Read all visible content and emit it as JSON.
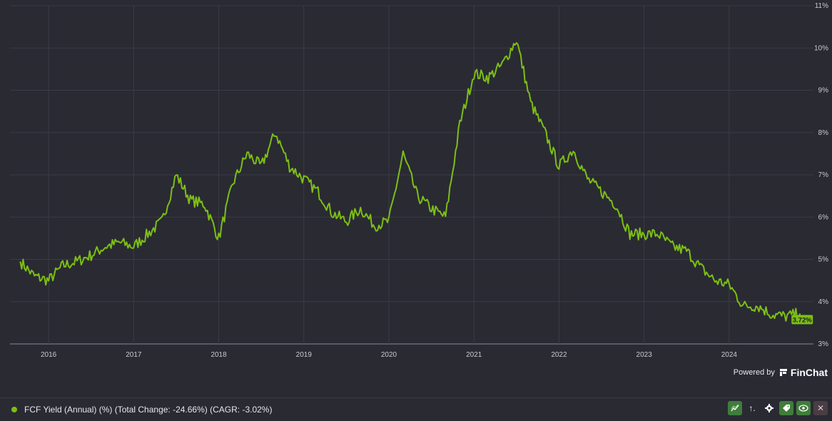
{
  "chart_data": {
    "type": "line",
    "x_ticks": [
      "2016",
      "2017",
      "2018",
      "2019",
      "2020",
      "2021",
      "2022",
      "2023",
      "2024"
    ],
    "y_ticks": [
      "11%",
      "10%",
      "9%",
      "8%",
      "7%",
      "6%",
      "5%",
      "4%",
      "3%"
    ],
    "ylim": [
      3,
      11
    ],
    "xlim": [
      "2015-09",
      "2024-11"
    ],
    "grid": true,
    "series": [
      {
        "name": "FCF Yield (Annual) (%)",
        "color": "#7cbf14",
        "x": [
          "2015-09",
          "2015-11",
          "2016-01",
          "2016-03",
          "2016-05",
          "2016-07",
          "2016-09",
          "2016-11",
          "2017-01",
          "2017-03",
          "2017-05",
          "2017-07",
          "2017-09",
          "2017-11",
          "2018-01",
          "2018-03",
          "2018-05",
          "2018-07",
          "2018-09",
          "2018-11",
          "2019-01",
          "2019-03",
          "2019-05",
          "2019-07",
          "2019-09",
          "2019-11",
          "2020-01",
          "2020-03",
          "2020-05",
          "2020-07",
          "2020-09",
          "2020-11",
          "2021-01",
          "2021-03",
          "2021-05",
          "2021-07",
          "2021-09",
          "2021-11",
          "2022-01",
          "2022-03",
          "2022-05",
          "2022-07",
          "2022-09",
          "2022-11",
          "2023-01",
          "2023-03",
          "2023-05",
          "2023-07",
          "2023-09",
          "2023-11",
          "2024-01",
          "2024-03",
          "2024-05",
          "2024-07",
          "2024-09",
          "2024-11"
        ],
        "values": [
          4.95,
          4.6,
          4.5,
          4.85,
          4.95,
          5.1,
          5.3,
          5.4,
          5.3,
          5.6,
          5.9,
          7.0,
          6.4,
          6.3,
          5.5,
          6.8,
          7.5,
          7.2,
          8.0,
          7.2,
          6.9,
          6.6,
          6.1,
          5.9,
          6.2,
          5.8,
          5.9,
          7.5,
          6.5,
          6.2,
          6.0,
          8.2,
          9.4,
          9.3,
          9.6,
          10.2,
          8.7,
          8.0,
          7.2,
          7.6,
          6.9,
          6.6,
          6.3,
          5.6,
          5.6,
          5.6,
          5.3,
          5.2,
          4.8,
          4.5,
          4.4,
          3.9,
          3.9,
          3.7,
          3.65,
          3.72
        ]
      }
    ],
    "last_value_label": "3.72%"
  },
  "legend": {
    "text": "FCF Yield (Annual) (%) (Total Change: -24.66%) (CAGR: -3.02%)"
  },
  "powered": {
    "label": "Powered by",
    "brand": "FinChat"
  },
  "toolbar": {
    "close_glyph": "✕",
    "sort_glyph": "↑."
  }
}
